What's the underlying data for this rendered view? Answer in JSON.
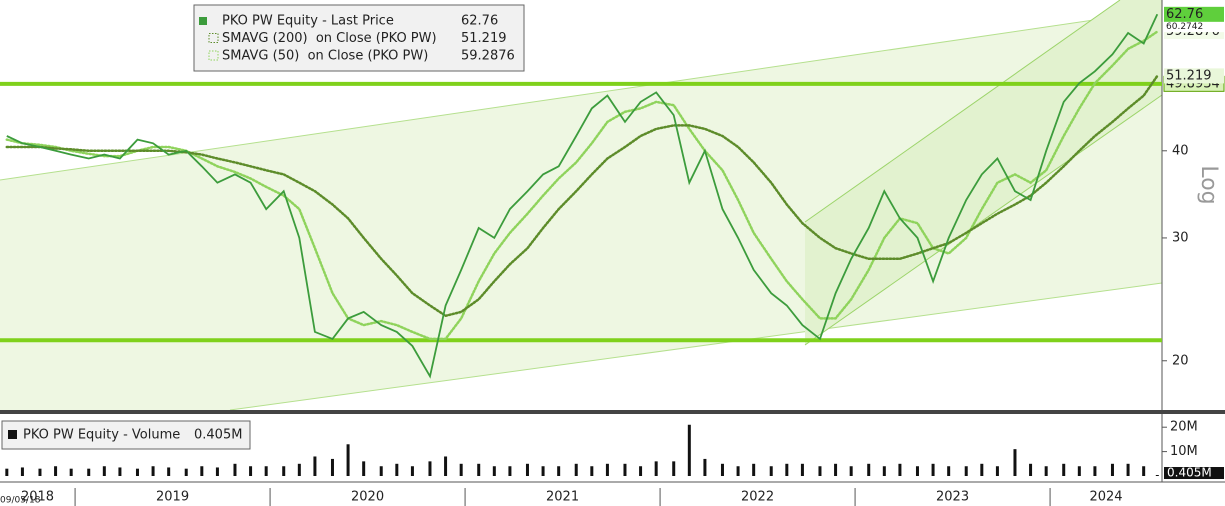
{
  "chart_data": {
    "type": "line",
    "log": true,
    "grid": false,
    "scale_label": "Log",
    "start_date": "09/05/18",
    "x": [
      2018.65,
      2018.73,
      2018.82,
      2018.9,
      2018.98,
      2019.07,
      2019.15,
      2019.23,
      2019.32,
      2019.4,
      2019.48,
      2019.57,
      2019.65,
      2019.73,
      2019.82,
      2019.9,
      2019.98,
      2020.07,
      2020.15,
      2020.23,
      2020.32,
      2020.4,
      2020.48,
      2020.57,
      2020.65,
      2020.73,
      2020.82,
      2020.9,
      2020.98,
      2021.07,
      2021.15,
      2021.23,
      2021.32,
      2021.4,
      2021.48,
      2021.57,
      2021.65,
      2021.73,
      2021.82,
      2021.9,
      2021.98,
      2022.07,
      2022.15,
      2022.23,
      2022.32,
      2022.4,
      2022.48,
      2022.57,
      2022.65,
      2022.73,
      2022.82,
      2022.9,
      2022.98,
      2023.07,
      2023.15,
      2023.23,
      2023.32,
      2023.4,
      2023.48,
      2023.57,
      2023.65,
      2023.73,
      2023.82,
      2023.9,
      2023.98,
      2024.07,
      2024.15,
      2024.23,
      2024.32,
      2024.4,
      2024.48,
      2024.55
    ],
    "xlim": [
      2018.615,
      2024.574
    ],
    "xticks": [
      2018,
      2019,
      2020,
      2021,
      2022,
      2023,
      2024
    ],
    "ylim": [
      17,
      65.8
    ],
    "yticks": [
      20,
      30,
      40
    ],
    "series": [
      {
        "name": "PKO PW Equity - Last Price",
        "color": "#3c9c3c",
        "values": [
          42,
          41,
          40.5,
          40,
          39.5,
          39,
          39.5,
          39,
          41.5,
          41,
          39.5,
          40,
          38,
          36,
          37,
          36,
          33,
          35,
          30,
          22,
          21.5,
          23,
          23.5,
          22.5,
          22,
          21,
          19,
          24,
          27,
          31,
          30,
          33,
          35,
          37,
          38,
          42,
          46,
          48,
          44,
          47,
          48.5,
          45,
          36,
          40,
          33,
          30,
          27,
          25,
          24,
          22.5,
          21.5,
          25,
          28,
          31,
          35,
          32,
          30,
          26,
          30,
          34,
          37,
          39,
          35,
          34,
          40,
          47,
          50,
          52,
          55,
          59,
          57,
          62.76
        ]
      },
      {
        "name": "SMAVG (200)  on Close (PKO PW)",
        "color": "#5d8c2a",
        "values": [
          40.5,
          40.5,
          40.5,
          40.3,
          40.2,
          40,
          40,
          40,
          40,
          40,
          40,
          39.8,
          39.5,
          39,
          38.5,
          38,
          37.5,
          37,
          36,
          35,
          33.5,
          32,
          30,
          28,
          26.5,
          25,
          24,
          23.2,
          23.5,
          24.5,
          26,
          27.5,
          29,
          31,
          33,
          35,
          37,
          39,
          40.5,
          42,
          43,
          43.5,
          43.5,
          43,
          42,
          40.5,
          38.5,
          36,
          33.5,
          31.5,
          30,
          29,
          28.5,
          28,
          28,
          28,
          28.5,
          29,
          29.5,
          30.5,
          31.5,
          32.5,
          33.5,
          34.5,
          36,
          38,
          40,
          42,
          44,
          46,
          48,
          51.219
        ]
      },
      {
        "name": "SMAVG (50)  on Close (PKO PW)",
        "color": "#8fd35c",
        "values": [
          41.5,
          41,
          40.8,
          40.5,
          40,
          39.6,
          39.3,
          39.3,
          40,
          40.5,
          40.5,
          40,
          39,
          38,
          37.3,
          36.5,
          35.5,
          34.5,
          33,
          29,
          25,
          23,
          22.5,
          22.8,
          22.5,
          22,
          21.5,
          21.5,
          23,
          26,
          28.5,
          30.5,
          32.5,
          34.5,
          36.5,
          38.5,
          41,
          44,
          45.5,
          46,
          47,
          46.5,
          43,
          40,
          37.5,
          34,
          30.5,
          28,
          26,
          24.5,
          23,
          23,
          24.5,
          27,
          30,
          32,
          31.5,
          29,
          28.5,
          30,
          33,
          36,
          37,
          36,
          37.5,
          42,
          46,
          50,
          53,
          56,
          57.5,
          59.2876
        ]
      }
    ],
    "hlines": [
      49.8934,
      21.4
    ],
    "trend_value": 60.2742,
    "volume": {
      "name": "PKO PW Equity - Volume",
      "last_label": "0.405M",
      "color": "#111111",
      "ylim": [
        0,
        25
      ],
      "yticks": [
        {
          "value": 20,
          "label": "20M"
        },
        {
          "value": 10,
          "label": "10M"
        }
      ],
      "values": [
        3,
        3.5,
        3,
        4,
        3,
        3,
        4,
        3.5,
        3,
        4,
        3.5,
        3,
        4,
        3.5,
        5,
        4,
        4,
        4,
        5,
        8,
        7,
        13,
        6,
        4,
        5,
        4,
        6,
        8,
        5,
        5,
        4,
        4,
        5,
        4,
        4,
        5,
        4,
        5,
        5,
        4,
        6,
        6,
        21,
        7,
        5,
        4,
        5,
        4,
        5,
        5,
        4,
        5,
        4,
        5,
        4,
        5,
        4,
        5,
        4,
        4,
        5,
        4,
        11,
        5,
        4,
        5,
        4,
        4,
        5,
        5,
        4,
        0.405
      ]
    }
  }
}
